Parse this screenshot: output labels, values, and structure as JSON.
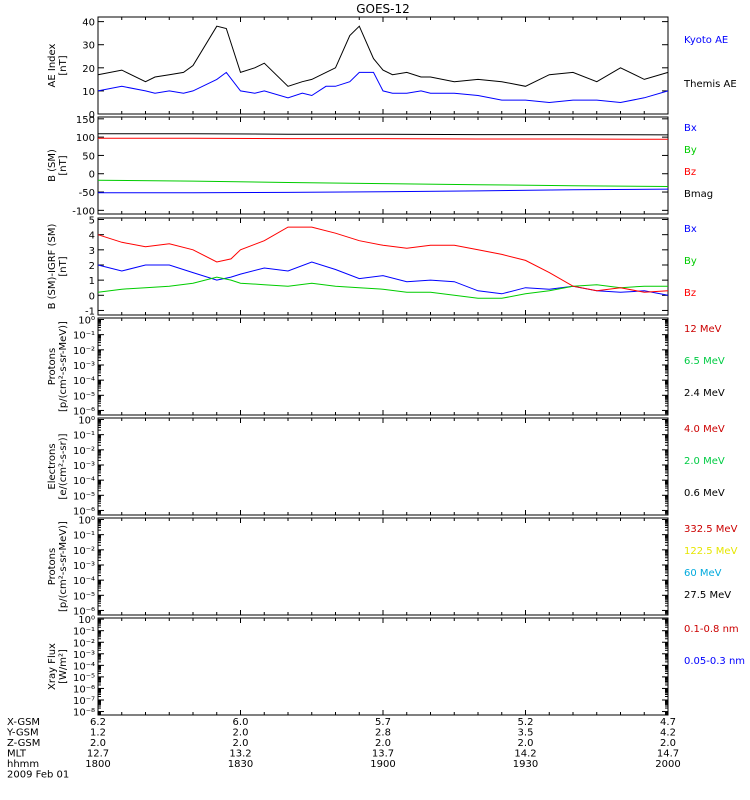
{
  "title": "GOES-12",
  "chart_data": [
    {
      "type": "line",
      "panel": "ae",
      "ylabel": [
        "AE Index",
        "[nT]"
      ],
      "ylim": [
        0,
        42
      ],
      "scale": "linear",
      "yticks": [
        0,
        10,
        20,
        30,
        40
      ],
      "ytick_labels": [
        "0",
        "10",
        "20",
        "30",
        "40"
      ],
      "x": [
        0,
        5,
        10,
        12,
        15,
        18,
        20,
        25,
        27,
        30,
        33,
        35,
        40,
        43,
        45,
        48,
        50,
        53,
        55,
        58,
        60,
        62,
        65,
        68,
        70,
        75,
        80,
        85,
        90,
        95,
        100,
        105,
        110,
        115,
        120
      ],
      "series": [
        {
          "name": "Kyoto AE",
          "color": "#0000ff",
          "values": [
            10,
            12,
            10,
            9,
            10,
            9,
            10,
            15,
            18,
            10,
            9,
            10,
            7,
            9,
            8,
            12,
            12,
            14,
            18,
            18,
            10,
            9,
            9,
            10,
            9,
            9,
            8,
            6,
            6,
            5,
            6,
            6,
            5,
            7,
            10
          ]
        },
        {
          "name": "Themis AE",
          "color": "#000000",
          "values": [
            17,
            19,
            14,
            16,
            17,
            18,
            21,
            38,
            37,
            18,
            20,
            22,
            12,
            14,
            15,
            18,
            20,
            34,
            38,
            24,
            19,
            17,
            18,
            16,
            16,
            14,
            15,
            14,
            12,
            17,
            18,
            14,
            20,
            15,
            18
          ]
        }
      ],
      "legend_labels_by_series": true
    },
    {
      "type": "line",
      "panel": "b",
      "ylabel": [
        "B (SM)",
        "[nT]"
      ],
      "ylim": [
        -110,
        155
      ],
      "scale": "linear",
      "yticks": [
        -100,
        -50,
        0,
        50,
        100,
        150
      ],
      "ytick_labels": [
        "-100",
        "-50",
        "0",
        "50",
        "100",
        "150"
      ],
      "x": [
        0,
        20,
        40,
        60,
        80,
        100,
        120
      ],
      "series": [
        {
          "name": "Bx",
          "color": "#0000ff",
          "values": [
            -52,
            -52,
            -51,
            -49,
            -47,
            -44,
            -42
          ]
        },
        {
          "name": "By",
          "color": "#00cc00",
          "values": [
            -18,
            -20,
            -24,
            -27,
            -30,
            -33,
            -35
          ]
        },
        {
          "name": "Bz",
          "color": "#ff0000",
          "values": [
            97,
            97,
            96,
            96,
            95,
            95,
            94
          ]
        },
        {
          "name": "Bmag",
          "color": "#000000",
          "values": [
            109,
            109,
            108,
            108,
            107,
            107,
            106
          ]
        }
      ]
    },
    {
      "type": "line",
      "panel": "b-igrf",
      "ylabel": [
        "B (SM)-IGRF (SM)",
        "[nT]"
      ],
      "ylim": [
        -1.3,
        5.1
      ],
      "scale": "linear",
      "yticks": [
        -1,
        0,
        1,
        2,
        3,
        4,
        5
      ],
      "ytick_labels": [
        "-1",
        "0",
        "1",
        "2",
        "3",
        "4",
        "5"
      ],
      "x": [
        0,
        5,
        10,
        15,
        20,
        25,
        28,
        30,
        35,
        40,
        45,
        50,
        55,
        60,
        65,
        70,
        75,
        80,
        85,
        90,
        95,
        100,
        105,
        110,
        115,
        120
      ],
      "series": [
        {
          "name": "Bx",
          "color": "#0000ff",
          "values": [
            2.0,
            1.6,
            2.0,
            2.0,
            1.5,
            1.0,
            1.2,
            1.4,
            1.8,
            1.6,
            2.2,
            1.7,
            1.1,
            1.3,
            0.9,
            1.0,
            0.9,
            0.3,
            0.1,
            0.5,
            0.4,
            0.6,
            0.3,
            0.2,
            0.3,
            0.0
          ]
        },
        {
          "name": "By",
          "color": "#00cc00",
          "values": [
            0.2,
            0.4,
            0.5,
            0.6,
            0.8,
            1.2,
            1.0,
            0.8,
            0.7,
            0.6,
            0.8,
            0.6,
            0.5,
            0.4,
            0.2,
            0.2,
            0.0,
            -0.2,
            -0.2,
            0.1,
            0.3,
            0.6,
            0.7,
            0.5,
            0.6,
            0.6
          ]
        },
        {
          "name": "Bz",
          "color": "#ff0000",
          "values": [
            4.0,
            3.5,
            3.2,
            3.4,
            3.0,
            2.2,
            2.4,
            3.0,
            3.6,
            4.5,
            4.5,
            4.1,
            3.6,
            3.3,
            3.1,
            3.3,
            3.3,
            3.0,
            2.7,
            2.3,
            1.5,
            0.6,
            0.3,
            0.5,
            0.2,
            0.3
          ]
        }
      ]
    },
    {
      "type": "line",
      "panel": "protons-1",
      "ylabel": [
        "Protons",
        "[p/(cm²-s-sr-MeV)]"
      ],
      "ylim_exp": [
        -6.3,
        0.1
      ],
      "scale": "log",
      "ytick_labels": [
        "10⁰",
        "10⁻¹",
        "10⁻²",
        "10⁻³",
        "10⁻⁴",
        "10⁻⁵",
        "10⁻⁶"
      ],
      "series": [
        {
          "name": "12 MeV",
          "color": "#cc0000",
          "values": []
        },
        {
          "name": "6.5 MeV",
          "color": "#00cc44",
          "values": []
        },
        {
          "name": "2.4 MeV",
          "color": "#000000",
          "values": []
        }
      ]
    },
    {
      "type": "line",
      "panel": "electrons",
      "ylabel": [
        "Electrons",
        "[e/(cm²-s-sr)]"
      ],
      "ylim_exp": [
        -6.3,
        0.1
      ],
      "scale": "log",
      "ytick_labels": [
        "10⁰",
        "10⁻¹",
        "10⁻²",
        "10⁻³",
        "10⁻⁴",
        "10⁻⁵",
        "10⁻⁶"
      ],
      "series": [
        {
          "name": "4.0 MeV",
          "color": "#cc0000",
          "values": []
        },
        {
          "name": "2.0 MeV",
          "color": "#00cc44",
          "values": []
        },
        {
          "name": "0.6 MeV",
          "color": "#000000",
          "values": []
        }
      ]
    },
    {
      "type": "line",
      "panel": "protons-2",
      "ylabel": [
        "Protons",
        "[p/(cm²-s-sr-MeV)]"
      ],
      "ylim_exp": [
        -6.3,
        0.1
      ],
      "scale": "log",
      "ytick_labels": [
        "10⁰",
        "10⁻¹",
        "10⁻²",
        "10⁻³",
        "10⁻⁴",
        "10⁻⁵",
        "10⁻⁶"
      ],
      "series": [
        {
          "name": "332.5 MeV",
          "color": "#cc0000",
          "values": []
        },
        {
          "name": "122.5 MeV",
          "color": "#e6e600",
          "values": []
        },
        {
          "name": "60 MeV",
          "color": "#00aadd",
          "values": []
        },
        {
          "name": "27.5 MeV",
          "color": "#000000",
          "values": []
        }
      ]
    },
    {
      "type": "line",
      "panel": "xray",
      "ylabel": [
        "Xray Flux",
        "[W/m²]"
      ],
      "ylim_exp": [
        -8.3,
        0.1
      ],
      "scale": "log",
      "ytick_labels": [
        "10⁰",
        "10⁻¹",
        "10⁻²",
        "10⁻³",
        "10⁻⁴",
        "10⁻⁵",
        "10⁻⁶",
        "10⁻⁷",
        "10⁻⁸"
      ],
      "series": [
        {
          "name": "0.1-0.8 nm",
          "color": "#cc0000",
          "values": []
        },
        {
          "name": "0.05-0.3 nm",
          "color": "#0000ff",
          "values": []
        }
      ]
    }
  ],
  "xaxis": {
    "range": [
      0,
      120
    ],
    "row_labels": [
      "X-GSM",
      "Y-GSM",
      "Z-GSM",
      "MLT",
      "hhmm",
      "2009 Feb 01"
    ],
    "columns": [
      {
        "x": 0,
        "values": [
          "6.2",
          "1.2",
          "2.0",
          "12.7",
          "1800"
        ]
      },
      {
        "x": 30,
        "values": [
          "6.0",
          "2.0",
          "2.0",
          "13.2",
          "1830"
        ]
      },
      {
        "x": 60,
        "values": [
          "5.7",
          "2.8",
          "2.0",
          "13.7",
          "1900"
        ]
      },
      {
        "x": 90,
        "values": [
          "5.2",
          "3.5",
          "2.0",
          "14.2",
          "1930"
        ]
      },
      {
        "x": 120,
        "values": [
          "4.7",
          "4.2",
          "2.0",
          "14.7",
          "2000"
        ]
      }
    ]
  }
}
